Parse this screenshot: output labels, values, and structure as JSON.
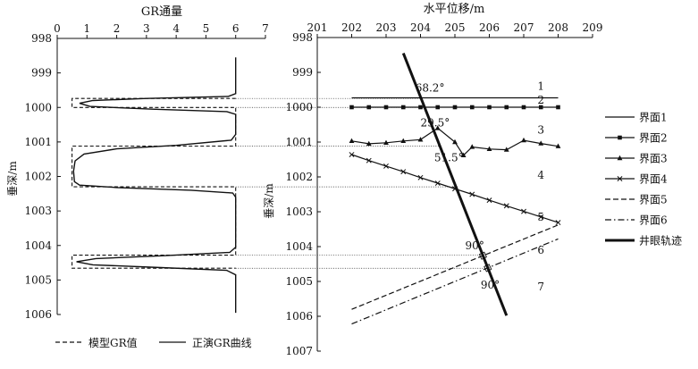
{
  "chart_data": [
    {
      "type": "line",
      "title": "GR通量",
      "ylabel": "垂深/m",
      "xlim": [
        0,
        7
      ],
      "ylim": [
        1006,
        998
      ],
      "xticks": [
        "0",
        "1",
        "2",
        "3",
        "4",
        "5",
        "6",
        "7"
      ],
      "yticks": [
        "998",
        "999",
        "1000",
        "1001",
        "1002",
        "1003",
        "1004",
        "1005",
        "1006"
      ],
      "series": [
        {
          "name": "模型GR值",
          "style": "dashed",
          "points": [
            [
              6,
              999.74
            ],
            [
              0.5,
              999.74
            ],
            [
              0.5,
              1000.0
            ],
            [
              6,
              1000.0
            ],
            [
              6,
              1001.12
            ],
            [
              0.5,
              1001.12
            ],
            [
              0.5,
              1002.3
            ],
            [
              6,
              1002.3
            ],
            [
              6,
              1004.28
            ],
            [
              0.5,
              1004.28
            ],
            [
              0.5,
              1004.66
            ],
            [
              6,
              1004.66
            ]
          ]
        },
        {
          "name": "正演GR曲线",
          "style": "solid",
          "points": [
            [
              6,
              998.55
            ],
            [
              6,
              999.6
            ],
            [
              5.75,
              999.68
            ],
            [
              3,
              999.74
            ],
            [
              1.2,
              999.8
            ],
            [
              0.75,
              999.88
            ],
            [
              1.1,
              999.97
            ],
            [
              3.2,
              1000.05
            ],
            [
              5.7,
              1000.12
            ],
            [
              6,
              1000.2
            ],
            [
              6,
              1000.78
            ],
            [
              5.85,
              1000.95
            ],
            [
              4,
              1001.1
            ],
            [
              2,
              1001.2
            ],
            [
              0.9,
              1001.35
            ],
            [
              0.6,
              1001.55
            ],
            [
              0.55,
              1001.85
            ],
            [
              0.58,
              1002.15
            ],
            [
              0.75,
              1002.25
            ],
            [
              2,
              1002.32
            ],
            [
              4.5,
              1002.4
            ],
            [
              5.9,
              1002.48
            ],
            [
              6,
              1002.6
            ],
            [
              6,
              1004.05
            ],
            [
              5.8,
              1004.2
            ],
            [
              3.5,
              1004.3
            ],
            [
              1.3,
              1004.38
            ],
            [
              0.65,
              1004.47
            ],
            [
              1.2,
              1004.56
            ],
            [
              3.5,
              1004.64
            ],
            [
              5.7,
              1004.72
            ],
            [
              6,
              1004.85
            ],
            [
              6,
              1005.95
            ]
          ]
        }
      ]
    },
    {
      "type": "line",
      "title": "水平位移/m",
      "ylabel": "垂深/m",
      "xlim": [
        201,
        209
      ],
      "ylim": [
        1007,
        998
      ],
      "xticks": [
        "201",
        "202",
        "203",
        "204",
        "205",
        "206",
        "207",
        "208",
        "209"
      ],
      "yticks": [
        "998",
        "999",
        "1000",
        "1001",
        "1002",
        "1003",
        "1004",
        "1005",
        "1006",
        "1007"
      ],
      "series": [
        {
          "name": "界面1",
          "style": "solid",
          "marker": "none",
          "points": [
            [
              202,
              999.73
            ],
            [
              208,
              999.73
            ]
          ]
        },
        {
          "name": "界面2",
          "style": "solid",
          "marker": "square",
          "points": [
            [
              202,
              1000
            ],
            [
              202.5,
              1000
            ],
            [
              203,
              1000
            ],
            [
              203.5,
              1000
            ],
            [
              204,
              1000
            ],
            [
              204.5,
              1000
            ],
            [
              205,
              1000
            ],
            [
              205.5,
              1000
            ],
            [
              206,
              1000
            ],
            [
              206.5,
              1000
            ],
            [
              207,
              1000
            ],
            [
              207.5,
              1000
            ],
            [
              208,
              1000
            ]
          ]
        },
        {
          "name": "界面3",
          "style": "solid",
          "marker": "triangle",
          "points": [
            [
              202,
              1000.97
            ],
            [
              202.5,
              1001.05
            ],
            [
              203,
              1001.02
            ],
            [
              203.5,
              1000.97
            ],
            [
              204,
              1000.93
            ],
            [
              204.5,
              1000.6
            ],
            [
              205,
              1001.0
            ],
            [
              205.25,
              1001.38
            ],
            [
              205.5,
              1001.14
            ],
            [
              206,
              1001.2
            ],
            [
              206.5,
              1001.22
            ],
            [
              207,
              1000.95
            ],
            [
              207.5,
              1001.04
            ],
            [
              208,
              1001.12
            ]
          ]
        },
        {
          "name": "界面4",
          "style": "solid",
          "marker": "x",
          "points": [
            [
              202,
              1001.36
            ],
            [
              202.5,
              1001.53
            ],
            [
              203,
              1001.69
            ],
            [
              203.5,
              1001.85
            ],
            [
              204,
              1002.02
            ],
            [
              204.5,
              1002.18
            ],
            [
              205,
              1002.34
            ],
            [
              205.5,
              1002.5
            ],
            [
              206,
              1002.67
            ],
            [
              206.5,
              1002.83
            ],
            [
              207,
              1002.99
            ],
            [
              207.5,
              1003.15
            ],
            [
              208,
              1003.31
            ]
          ]
        },
        {
          "name": "界面5",
          "style": "dashed",
          "marker": "none",
          "points": [
            [
              202,
              1005.8
            ],
            [
              208,
              1003.38
            ]
          ]
        },
        {
          "name": "界面6",
          "style": "dashdot",
          "marker": "none",
          "points": [
            [
              202,
              1006.22
            ],
            [
              208,
              1003.78
            ]
          ]
        },
        {
          "name": "井眼轨迹",
          "style": "bold",
          "marker": "none",
          "points": [
            [
              203.5,
              998.45
            ],
            [
              206.5,
              1005.98
            ]
          ]
        }
      ],
      "annotations": [
        {
          "text": "68.2°",
          "x": 203.85,
          "y": 999.55
        },
        {
          "text": "29.5°",
          "x": 204.0,
          "y": 1000.55
        },
        {
          "text": "51.5°",
          "x": 204.4,
          "y": 1001.55
        },
        {
          "text": "90°",
          "x": 205.3,
          "y": 1004.08
        },
        {
          "text": "90°",
          "x": 205.75,
          "y": 1005.2
        },
        {
          "text": "1",
          "x": 207.4,
          "y": 999.5
        },
        {
          "text": "2",
          "x": 207.4,
          "y": 999.9
        },
        {
          "text": "3",
          "x": 207.4,
          "y": 1000.75
        },
        {
          "text": "4",
          "x": 207.4,
          "y": 1002.05
        },
        {
          "text": "5",
          "x": 207.4,
          "y": 1003.25
        },
        {
          "text": "6",
          "x": 207.4,
          "y": 1004.2
        },
        {
          "text": "7",
          "x": 207.4,
          "y": 1005.25
        }
      ]
    }
  ],
  "legends": {
    "bottom": [
      "模型GR值",
      "正演GR曲线"
    ],
    "right": [
      "界面1",
      "界面2",
      "界面3",
      "界面4",
      "界面5",
      "界面6",
      "井眼轨迹"
    ]
  }
}
